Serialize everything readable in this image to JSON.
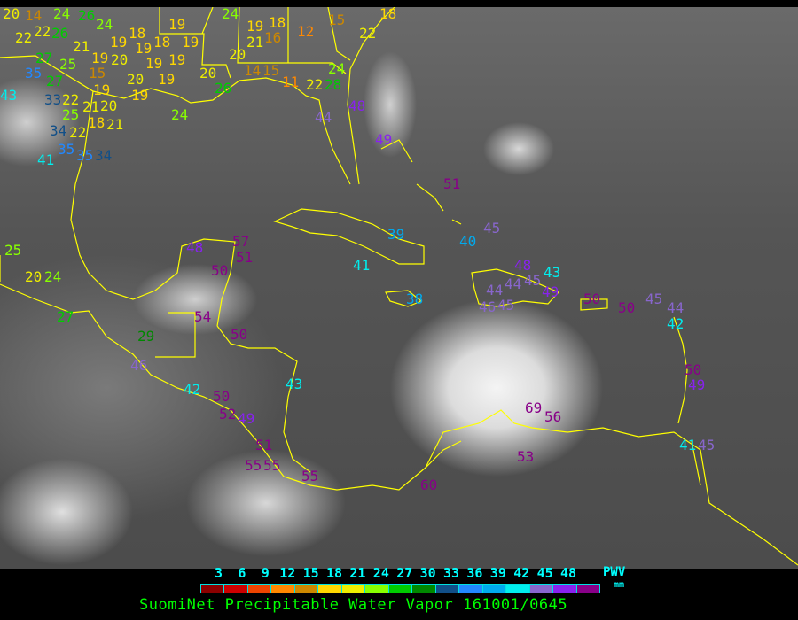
{
  "title": "SuomiNet Precipitable Water Vapor 161001/0645",
  "legend": {
    "unit_label": "PWV",
    "unit": "mm",
    "ticks": [
      "3",
      "6",
      "9",
      "12",
      "15",
      "18",
      "21",
      "24",
      "27",
      "30",
      "33",
      "36",
      "39",
      "42",
      "45",
      "48"
    ],
    "colors": [
      "#8b0000",
      "#cc0000",
      "#ee4400",
      "#ff8800",
      "#cc8800",
      "#ffd700",
      "#eeee00",
      "#88ff00",
      "#00cc00",
      "#008800",
      "#114f88",
      "#2288ff",
      "#00aaee",
      "#00eeee",
      "#8866cc",
      "#8822ee",
      "#880088"
    ]
  },
  "coastline_color": "#ffff00",
  "stations": [
    "20",
    "14",
    "22",
    "22",
    "26",
    "24",
    "26",
    "24",
    "21",
    "27",
    "25",
    "35",
    "27",
    "15",
    "19",
    "20",
    "19",
    "18",
    "19",
    "19",
    "18",
    "19",
    "19",
    "19",
    "19",
    "20",
    "19",
    "19",
    "24",
    "43",
    "33",
    "22",
    "21",
    "25",
    "18",
    "20",
    "22",
    "21",
    "34",
    "35",
    "35",
    "34",
    "41",
    "20",
    "26",
    "24",
    "20",
    "21",
    "16",
    "19",
    "18",
    "12",
    "15",
    "18",
    "22",
    "14",
    "15",
    "11",
    "22",
    "28",
    "24",
    "44",
    "48",
    "49",
    "51",
    "45",
    "40",
    "39",
    "41",
    "38",
    "44",
    "48",
    "45",
    "44",
    "43",
    "46",
    "45",
    "49",
    "50",
    "50",
    "45",
    "44",
    "42",
    "50",
    "49",
    "41",
    "45",
    "69",
    "56",
    "53",
    "60",
    "25",
    "20",
    "24",
    "27",
    "48",
    "57",
    "51",
    "50",
    "54",
    "50",
    "29",
    "46",
    "42",
    "50",
    "52",
    "49",
    "51",
    "55",
    "55",
    "43",
    "55"
  ]
}
